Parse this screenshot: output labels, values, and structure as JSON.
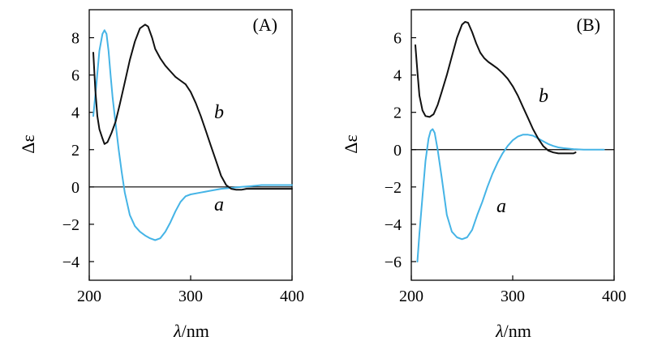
{
  "chart_data": [
    {
      "type": "line",
      "panel_label": "(A)",
      "xlabel_symbol": "λ",
      "xlabel_unit": "/nm",
      "ylabel": "Δε",
      "xlim": [
        200,
        400
      ],
      "ylim": [
        -5,
        9.5
      ],
      "xticks": [
        "200",
        "300",
        "400"
      ],
      "yticks": [
        "8",
        "6",
        "4",
        "2",
        "0",
        "−2",
        "−4"
      ],
      "ytick_values": [
        8,
        6,
        4,
        2,
        0,
        -2,
        -4
      ],
      "zero_line": true,
      "series": [
        {
          "name": "a",
          "label": "a",
          "color": "#45b4e6",
          "x": [
            204,
            207,
            210,
            213,
            215,
            217,
            219,
            221,
            223,
            226,
            229,
            232,
            235,
            240,
            245,
            250,
            255,
            260,
            265,
            270,
            275,
            280,
            285,
            290,
            295,
            300,
            310,
            320,
            330,
            340,
            350,
            360,
            370,
            380,
            390,
            400
          ],
          "y": [
            3.8,
            5.5,
            7.3,
            8.2,
            8.4,
            8.2,
            7.3,
            6.0,
            4.8,
            3.4,
            2.0,
            0.8,
            -0.3,
            -1.5,
            -2.1,
            -2.4,
            -2.6,
            -2.75,
            -2.85,
            -2.75,
            -2.4,
            -1.9,
            -1.3,
            -0.8,
            -0.5,
            -0.4,
            -0.3,
            -0.2,
            -0.1,
            -0.05,
            0.0,
            0.05,
            0.1,
            0.1,
            0.1,
            0.1
          ]
        },
        {
          "name": "b",
          "label": "b",
          "color": "#111111",
          "x": [
            204,
            206,
            208,
            210,
            213,
            215,
            218,
            222,
            226,
            230,
            235,
            240,
            245,
            250,
            255,
            258,
            262,
            265,
            270,
            275,
            280,
            285,
            290,
            295,
            300,
            305,
            310,
            315,
            320,
            325,
            330,
            335,
            340,
            345,
            350,
            355,
            360,
            370,
            380,
            390,
            400
          ],
          "y": [
            7.2,
            5.2,
            3.8,
            3.1,
            2.6,
            2.3,
            2.4,
            2.9,
            3.5,
            4.4,
            5.6,
            6.8,
            7.8,
            8.5,
            8.7,
            8.6,
            8.0,
            7.4,
            6.9,
            6.5,
            6.2,
            5.9,
            5.7,
            5.5,
            5.1,
            4.5,
            3.8,
            3.0,
            2.2,
            1.4,
            0.6,
            0.1,
            -0.1,
            -0.15,
            -0.15,
            -0.1,
            -0.1,
            -0.1,
            -0.1,
            -0.1,
            -0.1
          ]
        }
      ]
    },
    {
      "type": "line",
      "panel_label": "(B)",
      "xlabel_symbol": "λ",
      "xlabel_unit": "/nm",
      "ylabel": "Δε",
      "xlim": [
        200,
        400
      ],
      "ylim": [
        -7,
        7.5
      ],
      "xticks": [
        "200",
        "300",
        "400"
      ],
      "yticks": [
        "6",
        "4",
        "2",
        "0",
        "−2",
        "−4",
        "−6"
      ],
      "ytick_values": [
        6,
        4,
        2,
        0,
        -2,
        -4,
        -6
      ],
      "zero_line": true,
      "series": [
        {
          "name": "a",
          "label": "a",
          "color": "#45b4e6",
          "x": [
            206,
            208,
            211,
            214,
            217,
            219,
            221,
            223,
            226,
            230,
            235,
            240,
            245,
            250,
            255,
            260,
            265,
            270,
            275,
            280,
            285,
            290,
            295,
            300,
            305,
            310,
            315,
            320,
            325,
            330,
            335,
            340,
            345,
            350,
            360,
            370,
            380,
            390
          ],
          "y": [
            -6.0,
            -4.5,
            -2.5,
            -0.6,
            0.6,
            1.0,
            1.1,
            0.9,
            0.0,
            -1.5,
            -3.5,
            -4.4,
            -4.7,
            -4.8,
            -4.7,
            -4.3,
            -3.5,
            -2.8,
            -2.0,
            -1.3,
            -0.7,
            -0.2,
            0.2,
            0.5,
            0.7,
            0.8,
            0.8,
            0.75,
            0.6,
            0.45,
            0.3,
            0.2,
            0.12,
            0.08,
            0.03,
            0.0,
            0.0,
            0.0
          ]
        },
        {
          "name": "b",
          "label": "b",
          "color": "#111111",
          "x": [
            204,
            206,
            208,
            211,
            214,
            218,
            222,
            226,
            230,
            235,
            240,
            245,
            250,
            253,
            256,
            260,
            264,
            268,
            272,
            276,
            280,
            285,
            290,
            295,
            300,
            305,
            310,
            315,
            320,
            325,
            330,
            335,
            340,
            345,
            350,
            355,
            360,
            362
          ],
          "y": [
            5.6,
            4.2,
            2.9,
            2.1,
            1.8,
            1.75,
            1.9,
            2.4,
            3.1,
            4.0,
            5.0,
            6.0,
            6.7,
            6.85,
            6.8,
            6.3,
            5.7,
            5.2,
            4.9,
            4.7,
            4.55,
            4.35,
            4.1,
            3.8,
            3.4,
            2.9,
            2.3,
            1.7,
            1.1,
            0.6,
            0.2,
            -0.05,
            -0.15,
            -0.2,
            -0.2,
            -0.2,
            -0.2,
            -0.15
          ]
        }
      ]
    }
  ]
}
